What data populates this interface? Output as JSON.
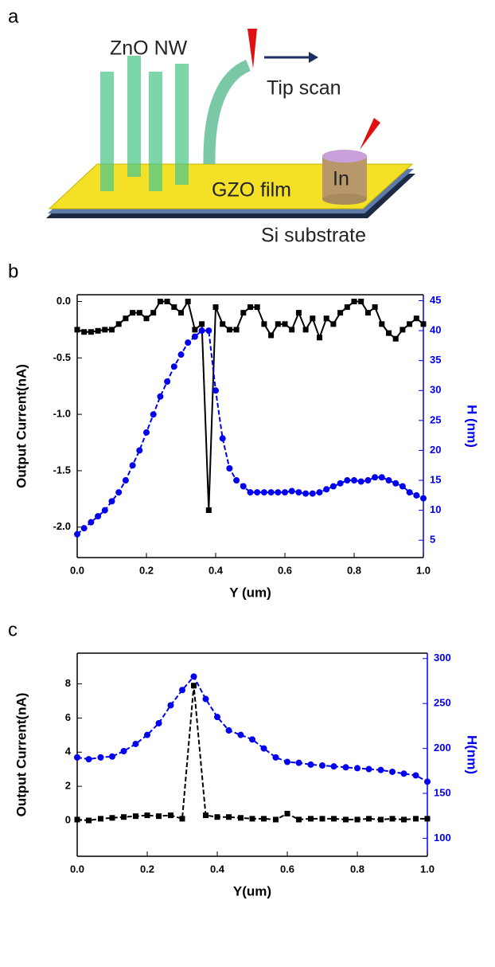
{
  "diagram": {
    "panel": "a",
    "labels": {
      "nanowire": "ZnO NW",
      "scan": "Tip scan",
      "film": "GZO film",
      "contact": "In",
      "substrate": "Si substrate"
    }
  },
  "chart_data": [
    {
      "type": "line",
      "panel": "b",
      "xlabel": "Y (um)",
      "ylabel": "Output Current(nA)",
      "y2label": "H (nm)",
      "x": [
        0,
        0.02,
        0.04,
        0.06,
        0.08,
        0.1,
        0.12,
        0.14,
        0.16,
        0.18,
        0.2,
        0.22,
        0.24,
        0.26,
        0.28,
        0.3,
        0.32,
        0.34,
        0.36,
        0.38,
        0.4,
        0.42,
        0.44,
        0.46,
        0.48,
        0.5,
        0.52,
        0.54,
        0.56,
        0.58,
        0.6,
        0.62,
        0.64,
        0.66,
        0.68,
        0.7,
        0.72,
        0.74,
        0.76,
        0.78,
        0.8,
        0.82,
        0.84,
        0.86,
        0.88,
        0.9,
        0.92,
        0.94,
        0.96,
        0.98,
        1
      ],
      "xlim": [
        0,
        1
      ],
      "xticks": [
        {
          "value": 0,
          "label": "0.0"
        },
        0.2,
        0.4,
        0.6,
        0.8,
        {
          "value": 1,
          "label": "1.0"
        }
      ],
      "ylim": [
        -2.27,
        0.06
      ],
      "yticks": [
        {
          "value": 0,
          "label": "0.0"
        },
        -0.5,
        {
          "value": -1,
          "label": "-1.0"
        },
        -1.5,
        {
          "value": -2,
          "label": "-2.0"
        }
      ],
      "y2lim": [
        2.1,
        46
      ],
      "y2ticks": [
        5,
        10,
        15,
        20,
        25,
        30,
        35,
        40,
        45
      ],
      "series": [
        {
          "color": "#000000",
          "marker": "square",
          "linestyle": "solid",
          "values": [
            -0.25,
            -0.27,
            -0.27,
            -0.26,
            -0.25,
            -0.25,
            -0.2,
            -0.15,
            -0.1,
            -0.1,
            -0.15,
            -0.1,
            0,
            0,
            -0.05,
            -0.1,
            0,
            -0.25,
            -0.2,
            -1.85,
            -0.05,
            -0.2,
            -0.25,
            -0.25,
            -0.1,
            -0.05,
            -0.05,
            -0.2,
            -0.3,
            -0.2,
            -0.2,
            -0.25,
            -0.1,
            -0.25,
            -0.15,
            -0.32,
            -0.15,
            -0.2,
            -0.1,
            -0.05,
            0,
            0,
            -0.1,
            -0.05,
            -0.2,
            -0.28,
            -0.33,
            -0.25,
            -0.2,
            -0.15,
            -0.2
          ]
        },
        {
          "color": "#0000ee",
          "marker": "circle",
          "linestyle": "dashed",
          "axis": "y2",
          "values": [
            6,
            7,
            8,
            9,
            10,
            11.5,
            13,
            15,
            17.5,
            20,
            23,
            26,
            29,
            31.5,
            34,
            36,
            38,
            39,
            40,
            40,
            30,
            22,
            17,
            15,
            14,
            13,
            13,
            13,
            13,
            13,
            13,
            13.2,
            13,
            12.8,
            12.8,
            13,
            13.5,
            14,
            14.5,
            15,
            15,
            14.8,
            15,
            15.5,
            15.5,
            15,
            14.5,
            14,
            13,
            12.5,
            12
          ]
        }
      ]
    },
    {
      "type": "line",
      "panel": "c",
      "xlabel": "Y(um)",
      "ylabel": "Output Current(nA)",
      "y2label": "H(nm)",
      "x": [
        0,
        0.033,
        0.067,
        0.1,
        0.133,
        0.167,
        0.2,
        0.233,
        0.267,
        0.3,
        0.333,
        0.367,
        0.4,
        0.433,
        0.467,
        0.5,
        0.533,
        0.567,
        0.6,
        0.633,
        0.667,
        0.7,
        0.733,
        0.767,
        0.8,
        0.833,
        0.867,
        0.9,
        0.933,
        0.967,
        1
      ],
      "xlim": [
        0,
        1
      ],
      "xticks": [
        {
          "value": 0,
          "label": "0.0"
        },
        0.2,
        0.4,
        0.6,
        0.8,
        {
          "value": 1,
          "label": "1.0"
        }
      ],
      "ylim": [
        -2.1,
        9.8
      ],
      "yticks": [
        0,
        2,
        4,
        6,
        8
      ],
      "y2lim": [
        80,
        306
      ],
      "y2ticks": [
        100,
        150,
        200,
        250,
        300
      ],
      "series": [
        {
          "color": "#000000",
          "marker": "square",
          "linestyle": "dashed",
          "values": [
            0.05,
            0,
            0.1,
            0.15,
            0.2,
            0.25,
            0.3,
            0.25,
            0.3,
            0.1,
            7.9,
            0.3,
            0.2,
            0.2,
            0.15,
            0.1,
            0.1,
            0.05,
            0.4,
            0.05,
            0.1,
            0.1,
            0.1,
            0.05,
            0.05,
            0.1,
            0.05,
            0.1,
            0.05,
            0.1,
            0.1
          ]
        },
        {
          "color": "#0000ee",
          "marker": "circle",
          "linestyle": "dashed",
          "axis": "y2",
          "values": [
            190,
            188,
            190,
            191,
            197,
            205,
            215,
            228,
            248,
            265,
            280,
            255,
            235,
            220,
            215,
            210,
            200,
            190,
            185,
            184,
            182,
            181,
            180,
            179,
            178,
            177,
            176,
            174,
            172,
            170,
            163
          ]
        }
      ]
    }
  ]
}
